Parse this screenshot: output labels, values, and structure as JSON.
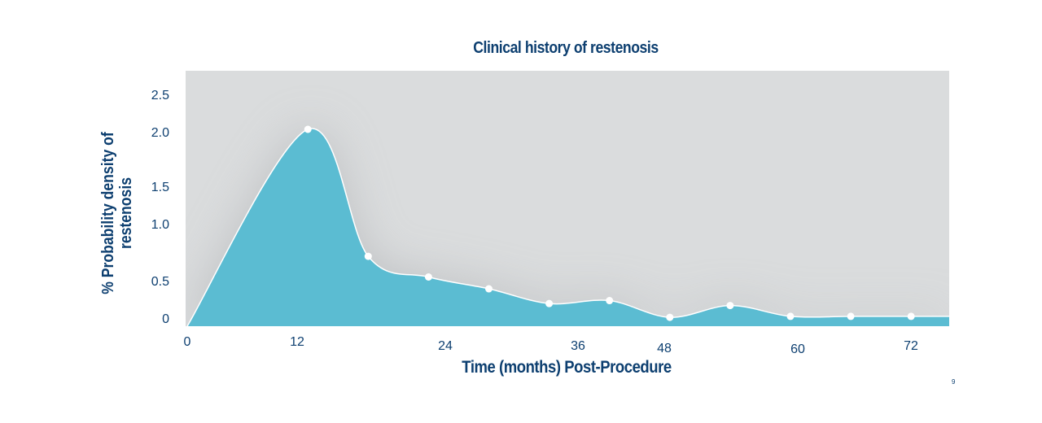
{
  "chart_data": {
    "type": "area",
    "title": "Clinical history of restenosis",
    "xlabel": "Time (months) Post-Procedure",
    "ylabel": "% Probability density of restenosis",
    "xlim": [
      0,
      76
    ],
    "ylim": [
      0,
      2.6
    ],
    "x_ticks": [
      0,
      12,
      24,
      36,
      48,
      60,
      72
    ],
    "x_tick_labels": [
      "0",
      "12",
      "24",
      "36",
      "48",
      "60",
      "72"
    ],
    "y_ticks": [
      0,
      0.5,
      1.0,
      1.5,
      2.0,
      2.5
    ],
    "y_tick_labels": [
      "0",
      "0.5",
      "1.0",
      "1.5",
      "2.0",
      "2.5"
    ],
    "curve": {
      "x": [
        0,
        12,
        18,
        24,
        30,
        36,
        42,
        48,
        54,
        60,
        66,
        72,
        76
      ],
      "y": [
        0,
        2.0,
        0.71,
        0.5,
        0.38,
        0.23,
        0.26,
        0.09,
        0.21,
        0.1,
        0.1,
        0.1,
        0.1
      ]
    },
    "markers_x": [
      12,
      18,
      24,
      30,
      36,
      42,
      48,
      54,
      60,
      66,
      72
    ],
    "grid": false,
    "legend": "none",
    "colors": {
      "fill": "#5bbcd2",
      "line": "#ffffff",
      "background": "#dadcdd",
      "text": "#0d3f70"
    }
  },
  "page_number": "9"
}
